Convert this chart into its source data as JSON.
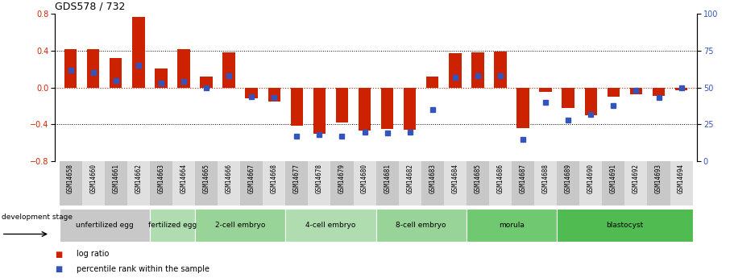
{
  "title": "GDS578 / 732",
  "samples": [
    "GSM14658",
    "GSM14660",
    "GSM14661",
    "GSM14662",
    "GSM14663",
    "GSM14664",
    "GSM14665",
    "GSM14666",
    "GSM14667",
    "GSM14668",
    "GSM14677",
    "GSM14678",
    "GSM14679",
    "GSM14680",
    "GSM14681",
    "GSM14682",
    "GSM14683",
    "GSM14684",
    "GSM14685",
    "GSM14686",
    "GSM14687",
    "GSM14688",
    "GSM14689",
    "GSM14690",
    "GSM14691",
    "GSM14692",
    "GSM14693",
    "GSM14694"
  ],
  "log_ratio": [
    0.42,
    0.42,
    0.32,
    0.77,
    0.21,
    0.42,
    0.12,
    0.38,
    -0.12,
    -0.15,
    -0.41,
    -0.5,
    -0.38,
    -0.47,
    -0.45,
    -0.46,
    0.12,
    0.37,
    0.38,
    0.39,
    -0.44,
    -0.05,
    -0.22,
    -0.3,
    -0.1,
    -0.07,
    -0.09,
    -0.03
  ],
  "percentile_rank": [
    62,
    60,
    55,
    65,
    53,
    54,
    50,
    58,
    44,
    43,
    17,
    18,
    17,
    20,
    19,
    20,
    35,
    57,
    58,
    58,
    15,
    40,
    28,
    32,
    38,
    48,
    43,
    50
  ],
  "stages": [
    {
      "label": "unfertilized egg",
      "start": 0,
      "end": 4,
      "color": "#c8c8c8"
    },
    {
      "label": "fertilized egg",
      "start": 4,
      "end": 6,
      "color": "#b0ddb0"
    },
    {
      "label": "2-cell embryo",
      "start": 6,
      "end": 10,
      "color": "#98d498"
    },
    {
      "label": "4-cell embryo",
      "start": 10,
      "end": 14,
      "color": "#b0ddb0"
    },
    {
      "label": "8-cell embryo",
      "start": 14,
      "end": 18,
      "color": "#98d498"
    },
    {
      "label": "morula",
      "start": 18,
      "end": 22,
      "color": "#70c870"
    },
    {
      "label": "blastocyst",
      "start": 22,
      "end": 28,
      "color": "#50bb50"
    }
  ],
  "bar_color": "#cc2200",
  "dot_color": "#3355bb",
  "ylim_left": [
    -0.8,
    0.8
  ],
  "ylim_right": [
    0,
    100
  ],
  "yticks_left": [
    -0.8,
    -0.4,
    0.0,
    0.4,
    0.8
  ],
  "yticks_right": [
    0,
    25,
    50,
    75,
    100
  ],
  "background_color": "#ffffff",
  "dev_stage_label": "development stage",
  "legend_bar": "log ratio",
  "legend_dot": "percentile rank within the sample"
}
